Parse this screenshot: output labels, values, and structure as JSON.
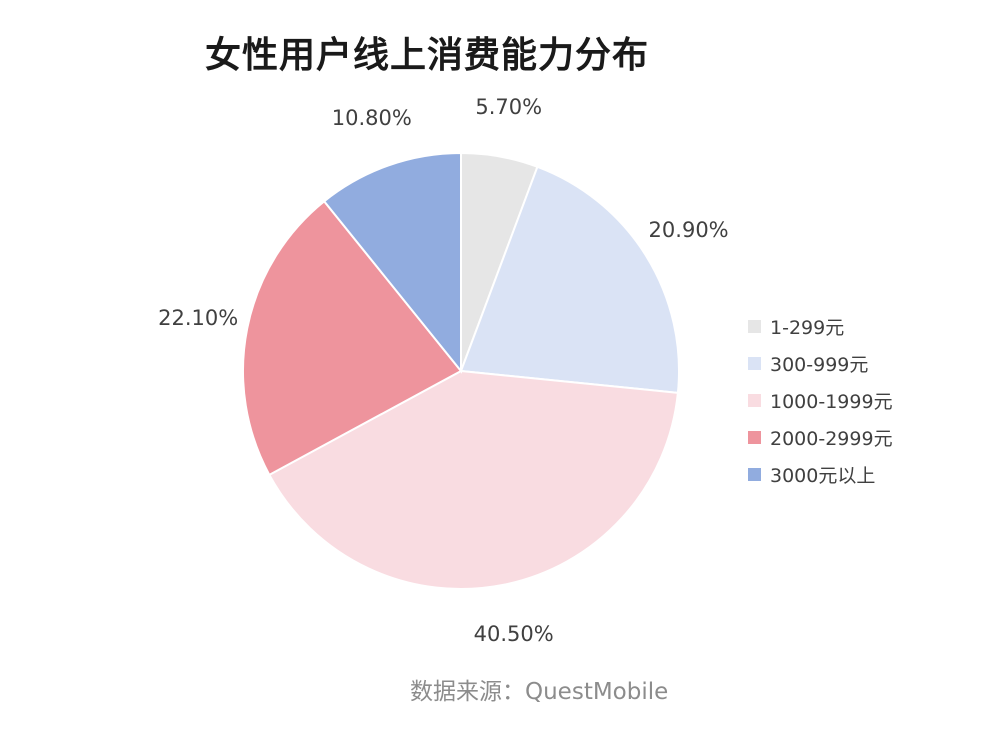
{
  "chart_data": {
    "type": "pie",
    "title": "女性用户线上消费能力分布",
    "categories": [
      "1-299元",
      "300-999元",
      "1000-1999元",
      "2000-2999元",
      "3000元以上"
    ],
    "values": [
      5.7,
      20.9,
      40.5,
      22.1,
      10.8
    ],
    "data_labels": [
      "5.70%",
      "20.90%",
      "40.50%",
      "22.10%",
      "10.80%"
    ],
    "colors": [
      "#e6e6e6",
      "#dae3f5",
      "#f9dce1",
      "#ee949d",
      "#91acdf"
    ],
    "legend_position": "right",
    "start_angle": "12 o'clock",
    "direction": "clockwise"
  },
  "source": "数据来源：QuestMobile"
}
